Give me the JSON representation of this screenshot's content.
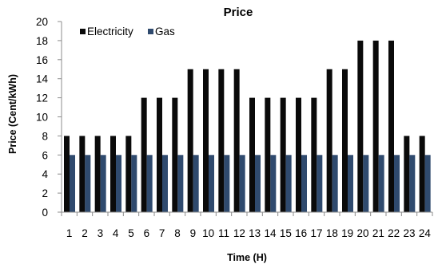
{
  "chart_data": {
    "type": "bar",
    "title": "Price",
    "xlabel": "Time (H)",
    "ylabel": "Price (Cent/kWh)",
    "ylim": [
      0,
      20
    ],
    "yticks": [
      0,
      2,
      4,
      6,
      8,
      10,
      12,
      14,
      16,
      18,
      20
    ],
    "categories": [
      "1",
      "2",
      "3",
      "4",
      "5",
      "6",
      "7",
      "8",
      "9",
      "10",
      "11",
      "12",
      "13",
      "14",
      "15",
      "16",
      "17",
      "18",
      "19",
      "20",
      "21",
      "22",
      "23",
      "24"
    ],
    "series": [
      {
        "name": "Electricity",
        "color": "#0a0a0a",
        "values": [
          8,
          8,
          8,
          8,
          8,
          12,
          12,
          12,
          15,
          15,
          15,
          15,
          12,
          12,
          12,
          12,
          12,
          15,
          15,
          18,
          18,
          18,
          8,
          8
        ]
      },
      {
        "name": "Gas",
        "color": "#2f4a6e",
        "values": [
          6,
          6,
          6,
          6,
          6,
          6,
          6,
          6,
          6,
          6,
          6,
          6,
          6,
          6,
          6,
          6,
          6,
          6,
          6,
          6,
          6,
          6,
          6,
          6
        ]
      }
    ],
    "legend_position": "top-left",
    "grid": false
  }
}
